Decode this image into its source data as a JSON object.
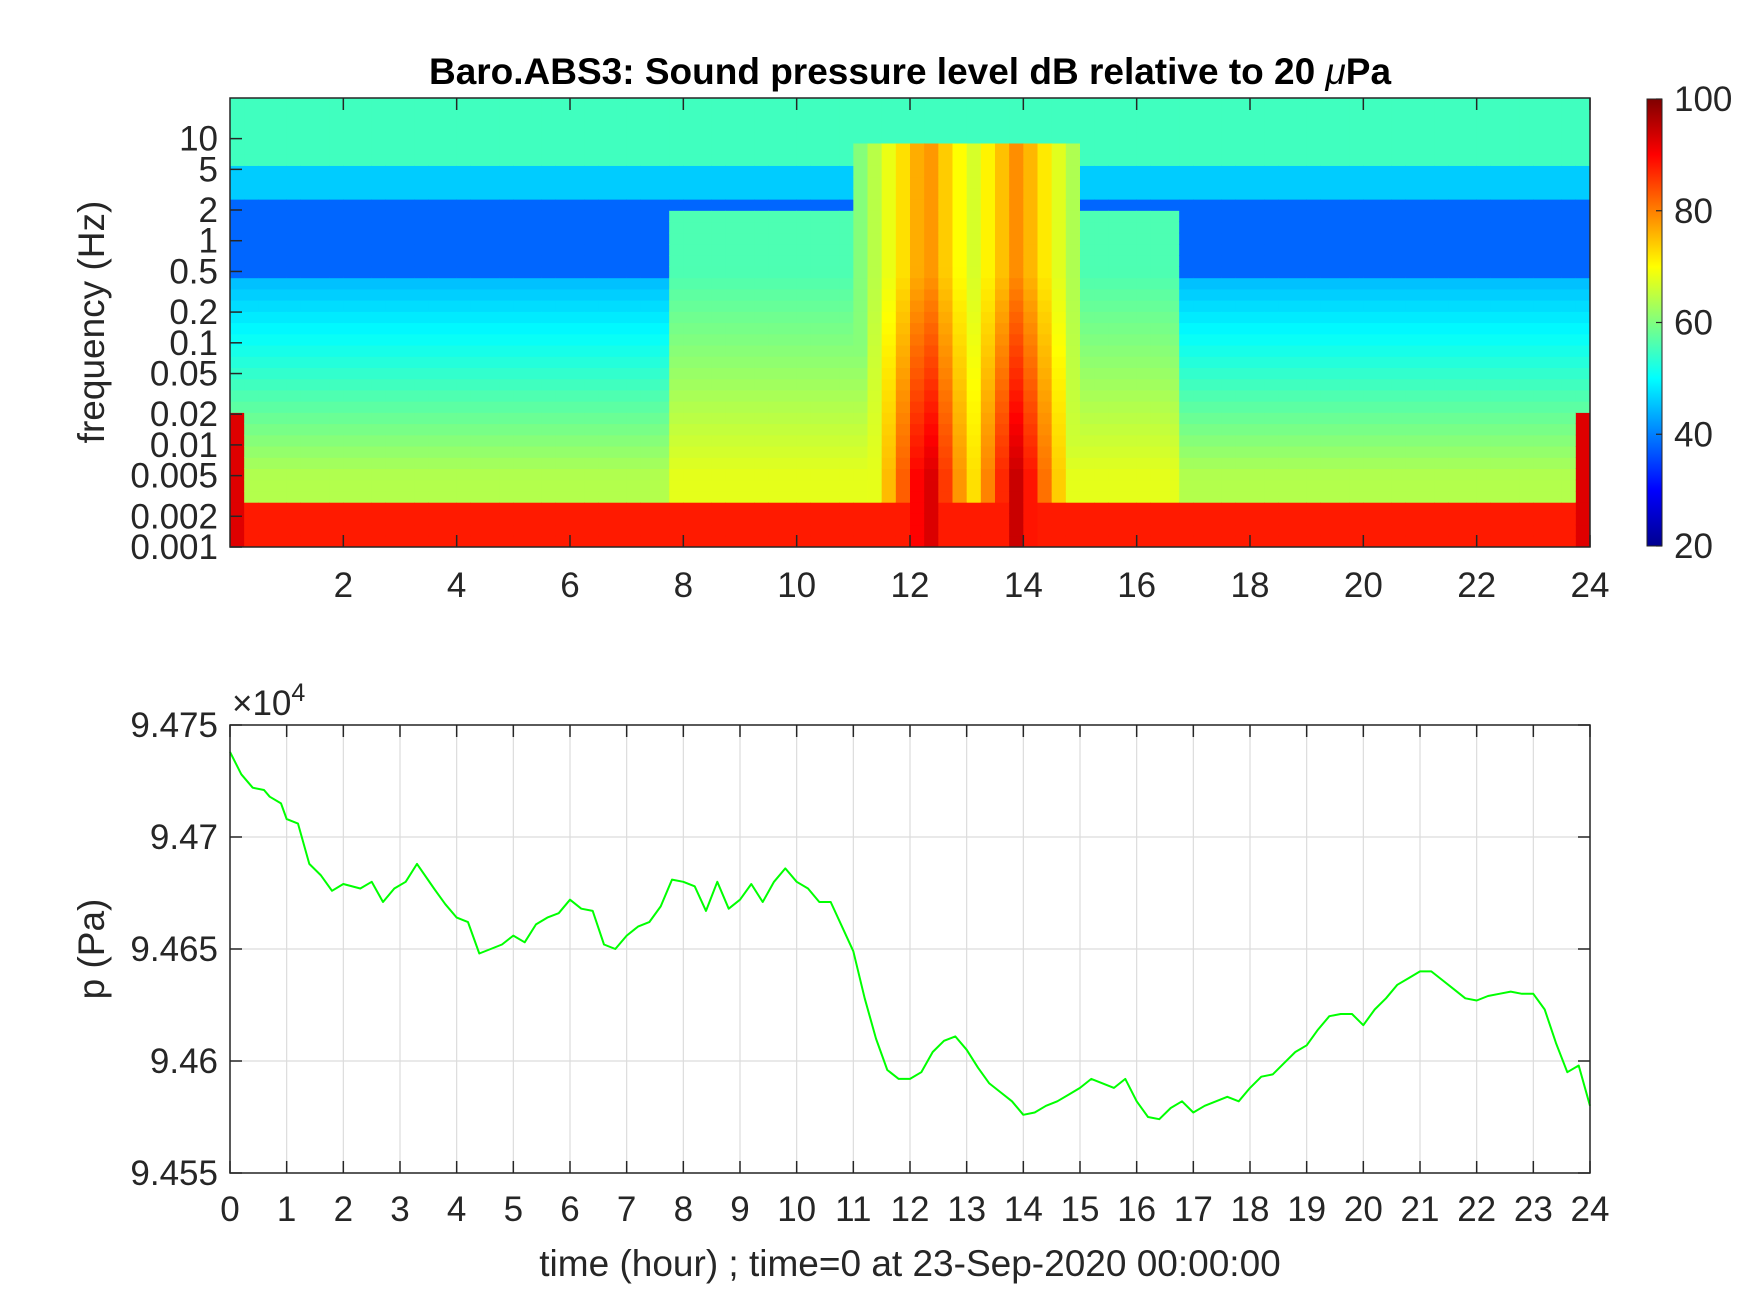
{
  "chart_data": [
    {
      "type": "heatmap",
      "title": "Baro.ABS3: Sound pressure level dB relative to 20 μPa",
      "title_prefix": "Baro.ABS3: Sound pressure level dB relative to 20 ",
      "title_mu": "μ",
      "title_suffix": "Pa",
      "xlabel": "",
      "ylabel": "frequency (Hz)",
      "xlim": [
        0,
        24
      ],
      "ylim": [
        0.001,
        25
      ],
      "yscale": "log",
      "x_ticks": [
        "2",
        "4",
        "6",
        "8",
        "10",
        "12",
        "14",
        "16",
        "18",
        "20",
        "22",
        "24"
      ],
      "x_tick_values": [
        2,
        4,
        6,
        8,
        10,
        12,
        14,
        16,
        18,
        20,
        22,
        24
      ],
      "y_ticks": [
        "10",
        "5",
        "2",
        "1",
        "0.5",
        "0.2",
        "0.1",
        "0.05",
        "0.02",
        "0.01",
        "0.005",
        "0.002",
        "0.001"
      ],
      "y_tick_values": [
        10,
        5,
        2,
        1,
        0.5,
        0.2,
        0.1,
        0.05,
        0.02,
        0.01,
        0.005,
        0.002,
        0.001
      ],
      "colorbar": {
        "colormap": "jet",
        "range": [
          20,
          100
        ],
        "ticks": [
          "100",
          "80",
          "60",
          "40",
          "20"
        ],
        "tick_values": [
          100,
          80,
          60,
          40,
          20
        ]
      },
      "intensity_features": {
        "background_dB_above_5Hz": 55,
        "quiet_band_dB_0_5_to_2Hz": 38,
        "low_frequency_dB_below_0_002Hz": 88,
        "activity_start_hour": 7.8,
        "activity_end_hour": 16.7,
        "peaks": [
          {
            "hour": 12.3,
            "max_dB": 95
          },
          {
            "hour": 13.9,
            "max_dB": 95
          }
        ]
      }
    },
    {
      "type": "line",
      "xlabel": "time (hour) ; time=0 at 23-Sep-2020 00:00:00",
      "ylabel": "p (Pa)",
      "exponent_label": "×10",
      "exponent_power": "4",
      "xlim": [
        0,
        24
      ],
      "ylim": [
        94550,
        94750
      ],
      "x_ticks": [
        "0",
        "1",
        "2",
        "3",
        "4",
        "5",
        "6",
        "7",
        "8",
        "9",
        "10",
        "11",
        "12",
        "13",
        "14",
        "15",
        "16",
        "17",
        "18",
        "19",
        "20",
        "21",
        "22",
        "23",
        "24"
      ],
      "x_tick_values": [
        0,
        1,
        2,
        3,
        4,
        5,
        6,
        7,
        8,
        9,
        10,
        11,
        12,
        13,
        14,
        15,
        16,
        17,
        18,
        19,
        20,
        21,
        22,
        23,
        24
      ],
      "y_ticks": [
        "9.475",
        "9.47",
        "9.465",
        "9.46",
        "9.455"
      ],
      "y_tick_values": [
        94750,
        94700,
        94650,
        94600,
        94550
      ],
      "grid": true,
      "line_color": "#00ff00",
      "series": [
        {
          "x": [
            0,
            0.2,
            0.4,
            0.6,
            0.7,
            0.9,
            1.0,
            1.2,
            1.4,
            1.6,
            1.8,
            2.0,
            2.3,
            2.5,
            2.7,
            2.9,
            3.1,
            3.3,
            3.6,
            3.8,
            4.0,
            4.2,
            4.4,
            4.6,
            4.8,
            5.0,
            5.2,
            5.4,
            5.6,
            5.8,
            6.0,
            6.2,
            6.4,
            6.6,
            6.8,
            7.0,
            7.2,
            7.4,
            7.6,
            7.8,
            8.0,
            8.2,
            8.4,
            8.6,
            8.8,
            9.0,
            9.2,
            9.4,
            9.6,
            9.8,
            10.0,
            10.2,
            10.4,
            10.6,
            10.8,
            11.0,
            11.2,
            11.4,
            11.6,
            11.8,
            12.0,
            12.2,
            12.4,
            12.6,
            12.8,
            13.0,
            13.2,
            13.4,
            13.6,
            13.8,
            14.0,
            14.2,
            14.4,
            14.6,
            14.8,
            15.0,
            15.2,
            15.4,
            15.6,
            15.8,
            16.0,
            16.2,
            16.4,
            16.6,
            16.8,
            17.0,
            17.2,
            17.4,
            17.6,
            17.8,
            18.0,
            18.2,
            18.4,
            18.6,
            18.8,
            19.0,
            19.2,
            19.4,
            19.6,
            19.8,
            20.0,
            20.2,
            20.4,
            20.6,
            20.8,
            21.0,
            21.2,
            21.4,
            21.6,
            21.8,
            22.0,
            22.2,
            22.4,
            22.6,
            22.8,
            23.0,
            23.2,
            23.4,
            23.6,
            23.8,
            24.0
          ],
          "y": [
            94738,
            94728,
            94722,
            94721,
            94718,
            94715,
            94708,
            94706,
            94688,
            94683,
            94676,
            94679,
            94677,
            94680,
            94671,
            94677,
            94680,
            94688,
            94677,
            94670,
            94664,
            94662,
            94648,
            94650,
            94652,
            94656,
            94653,
            94661,
            94664,
            94666,
            94672,
            94668,
            94667,
            94652,
            94650,
            94656,
            94660,
            94662,
            94669,
            94681,
            94680,
            94678,
            94667,
            94680,
            94668,
            94672,
            94679,
            94671,
            94680,
            94686,
            94680,
            94677,
            94671,
            94671,
            94660,
            94649,
            94628,
            94610,
            94596,
            94592,
            94592,
            94595,
            94604,
            94609,
            94611,
            94605,
            94597,
            94590,
            94586,
            94582,
            94576,
            94577,
            94580,
            94582,
            94585,
            94588,
            94592,
            94590,
            94588,
            94592,
            94582,
            94575,
            94574,
            94579,
            94582,
            94577,
            94580,
            94582,
            94584,
            94582,
            94588,
            94593,
            94594,
            94599,
            94604,
            94607,
            94614,
            94620,
            94621,
            94621,
            94616,
            94623,
            94628,
            94634,
            94637,
            94640,
            94640,
            94636,
            94632,
            94628,
            94627,
            94629,
            94630,
            94631,
            94630,
            94630,
            94623,
            94608,
            94595,
            94598,
            94580
          ]
        }
      ]
    }
  ]
}
